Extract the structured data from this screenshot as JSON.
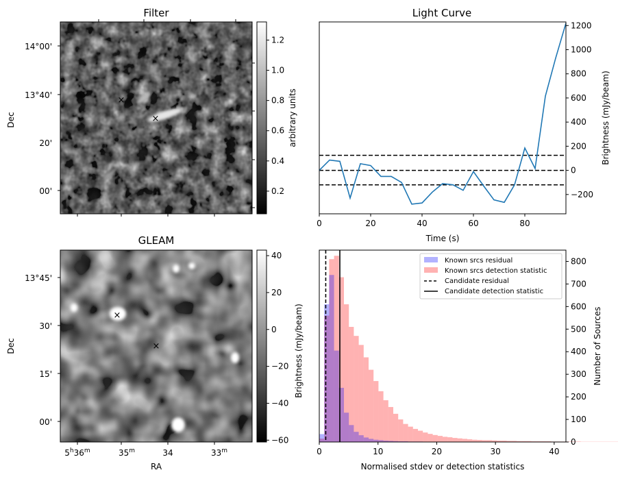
{
  "panels": {
    "filter": {
      "title": "Filter",
      "ylabel": "Dec",
      "yticks": [
        "14°00'",
        "13°40'",
        "20'",
        "00'"
      ],
      "colorbar": {
        "label": "arbitrary units",
        "ticks": [
          "1.2",
          "1.0",
          "0.8",
          "0.6",
          "0.4",
          "0.2"
        ],
        "range": [
          0.05,
          1.32
        ]
      },
      "markers": {
        "known": {
          "symbol": "x",
          "color": "#0000ff"
        },
        "candidate": {
          "symbol": "x",
          "color": "#ff0000"
        }
      }
    },
    "gleam": {
      "title": "GLEAM",
      "ylabel": "Dec",
      "xlabel": "RA",
      "yticks": [
        "13°45'",
        "30'",
        "15'",
        "00'"
      ],
      "xticks": [
        {
          "main": "5",
          "sup1": "h",
          "mid": "36",
          "sup2": "m"
        },
        {
          "main": "35",
          "sup1": "m",
          "mid": "",
          "sup2": ""
        },
        {
          "main": "34",
          "sup1": "",
          "mid": "",
          "sup2": ""
        },
        {
          "main": "33",
          "sup1": "m",
          "mid": "",
          "sup2": ""
        }
      ],
      "colorbar": {
        "label": "Brightness (mJy/beam)",
        "ticks": [
          "40",
          "20",
          "0",
          "−20",
          "−40",
          "−60"
        ],
        "range": [
          -61,
          43
        ]
      },
      "markers": {
        "known": {
          "symbol": "x",
          "color": "#0000ff"
        },
        "candidate": {
          "symbol": "x",
          "color": "#ff0000"
        }
      }
    }
  },
  "chart_data": [
    {
      "type": "line",
      "title": "Light Curve",
      "xlabel": "Time (s)",
      "ylabel": "Brightness (mJy/beam)",
      "xlim": [
        0,
        96
      ],
      "ylim": [
        -360,
        1230
      ],
      "xticks": [
        0,
        20,
        40,
        60,
        80
      ],
      "yticks": [
        -200,
        0,
        200,
        400,
        600,
        800,
        1000,
        1200
      ],
      "color": "#1f77b4",
      "x": [
        0,
        4,
        8,
        12,
        16,
        20,
        24,
        28,
        32,
        36,
        40,
        44,
        48,
        52,
        56,
        60,
        64,
        68,
        72,
        76,
        80,
        84,
        88,
        92,
        96
      ],
      "y": [
        0,
        85,
        75,
        -230,
        55,
        40,
        -50,
        -50,
        -100,
        -280,
        -270,
        -180,
        -110,
        -120,
        -165,
        -10,
        -130,
        -245,
        -265,
        -120,
        185,
        15,
        615,
        930,
        1220
      ],
      "hlines": [
        {
          "y": 125,
          "style": "dashed",
          "color": "#000000"
        },
        {
          "y": 0,
          "style": "dashed",
          "color": "#000000"
        },
        {
          "y": -120,
          "style": "dashed",
          "color": "#000000"
        }
      ]
    },
    {
      "type": "histogram",
      "xlabel": "Normalised stdev or detection statistics",
      "ylabel": "Number of Sources",
      "xlim": [
        0,
        42
      ],
      "ylim": [
        0,
        850
      ],
      "xticks": [
        0,
        10,
        20,
        30,
        40
      ],
      "yticks": [
        0,
        100,
        200,
        300,
        400,
        500,
        600,
        700,
        800
      ],
      "bin_width": 0.84,
      "series": [
        {
          "name": "Known srcs residual",
          "color": "#0000ff",
          "alpha": 0.3,
          "values": [
            35,
            610,
            740,
            405,
            240,
            130,
            75,
            45,
            30,
            20,
            14,
            10,
            8,
            6,
            5,
            4,
            3,
            3,
            2,
            2,
            2,
            1,
            1,
            1,
            1,
            1,
            1,
            1
          ]
        },
        {
          "name": "Known srcs detection statistic",
          "color": "#ff0000",
          "alpha": 0.3,
          "values": [
            15,
            560,
            810,
            825,
            730,
            610,
            510,
            470,
            430,
            375,
            320,
            270,
            225,
            185,
            155,
            125,
            100,
            80,
            68,
            58,
            50,
            42,
            36,
            31,
            27,
            23,
            21,
            18,
            16,
            14,
            12,
            10,
            9,
            8,
            8,
            7,
            6,
            6,
            5,
            5,
            4,
            4,
            4,
            3,
            3,
            3,
            3,
            2,
            2,
            2,
            2,
            2,
            2,
            1,
            1,
            1,
            1,
            1,
            1,
            1,
            1,
            1,
            1,
            1,
            1,
            1,
            1,
            1,
            1,
            1,
            1,
            1,
            1,
            1,
            1,
            1,
            1,
            1,
            1,
            1,
            1,
            1,
            1,
            1,
            1,
            1,
            1,
            1,
            1,
            1,
            1,
            1,
            1,
            1,
            1,
            1,
            1,
            1
          ]
        }
      ],
      "vlines": [
        {
          "name": "Candidate residual",
          "x": 1.1,
          "style": "dashed",
          "color": "#000000"
        },
        {
          "name": "Candidate detection statistic",
          "x": 3.5,
          "style": "solid",
          "color": "#000000"
        }
      ],
      "legend": {
        "position": "top-right"
      }
    }
  ]
}
